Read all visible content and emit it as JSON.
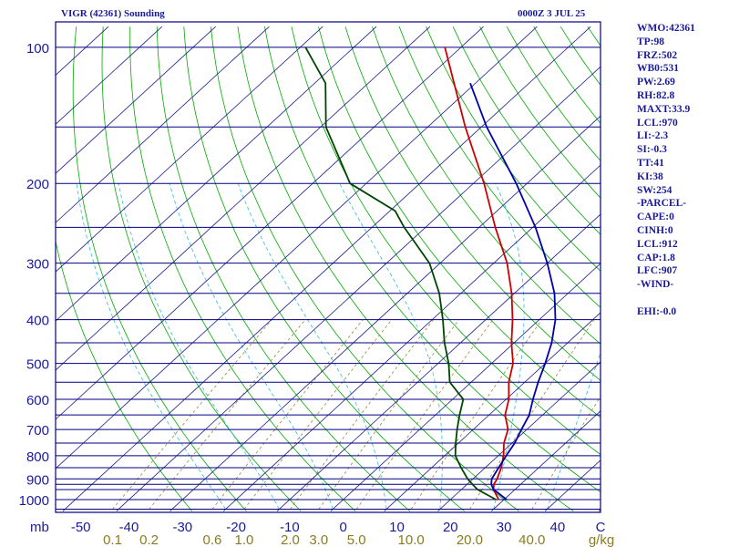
{
  "chart_data": {
    "type": "skew-t",
    "title_left": "VIGR (42361) Sounding",
    "title_right": "0000Z  3 JUL 25",
    "pressure_unit": "mb",
    "mixing_ratio_unit": "g/kg",
    "pressure_axis": {
      "range": [
        1050,
        100
      ],
      "scale": "log",
      "tick_labels": [
        "100",
        "200",
        "300",
        "400",
        "500",
        "600",
        "700",
        "800",
        "900",
        "1000"
      ],
      "isobars": [
        100,
        150,
        200,
        250,
        300,
        350,
        400,
        450,
        500,
        550,
        600,
        650,
        700,
        750,
        800,
        850,
        900,
        925,
        950,
        1000,
        1050
      ]
    },
    "temperature_axis": {
      "tick_labels": [
        "-50",
        "-40",
        "-30",
        "-20",
        "-10",
        "0",
        "10",
        "20",
        "30",
        "40",
        "C"
      ],
      "ticks": [
        -50,
        -40,
        -30,
        -20,
        -10,
        0,
        10,
        20,
        30,
        40
      ]
    },
    "mixing_ratio_labels": [
      "0.1",
      "0.2",
      "0.6",
      "1.0",
      "2.0",
      "3.0",
      "5.0",
      "10.0",
      "20.0",
      "40.0"
    ],
    "mixing_ratio_values": [
      0.1,
      0.2,
      0.6,
      1.0,
      2.0,
      3.0,
      5.0,
      10.0,
      20.0,
      40.0
    ],
    "grid": true,
    "series": [
      {
        "role": "temperature",
        "color": "#cc0000",
        "points": [
          [
            1000,
            29.0
          ],
          [
            950,
            26.0
          ],
          [
            925,
            25.0
          ],
          [
            900,
            24.5
          ],
          [
            850,
            23.0
          ],
          [
            800,
            21.0
          ],
          [
            750,
            18.5
          ],
          [
            700,
            16.5
          ],
          [
            650,
            13.0
          ],
          [
            600,
            10.5
          ],
          [
            550,
            7.0
          ],
          [
            500,
            4.0
          ],
          [
            450,
            -0.5
          ],
          [
            400,
            -5.0
          ],
          [
            350,
            -10.5
          ],
          [
            300,
            -17.5
          ],
          [
            250,
            -27.0
          ],
          [
            200,
            -38.0
          ],
          [
            150,
            -53.0
          ],
          [
            120,
            -64.0
          ],
          [
            100,
            -73.0
          ]
        ]
      },
      {
        "role": "dewpoint",
        "color": "#004400",
        "points": [
          [
            1000,
            28.5
          ],
          [
            950,
            23.0
          ],
          [
            925,
            21.0
          ],
          [
            900,
            19.0
          ],
          [
            850,
            15.5
          ],
          [
            800,
            12.0
          ],
          [
            750,
            9.5
          ],
          [
            700,
            7.0
          ],
          [
            650,
            4.5
          ],
          [
            600,
            2.0
          ],
          [
            550,
            -4.0
          ],
          [
            500,
            -8.0
          ],
          [
            450,
            -13.0
          ],
          [
            400,
            -18.0
          ],
          [
            350,
            -24.0
          ],
          [
            300,
            -32.0
          ],
          [
            250,
            -44.0
          ],
          [
            230,
            -49.0
          ],
          [
            200,
            -63.0
          ],
          [
            150,
            -79.0
          ],
          [
            120,
            -88.0
          ],
          [
            100,
            -99.0
          ]
        ]
      },
      {
        "role": "parcel",
        "color": "#0000aa",
        "points": [
          [
            1000,
            30.5
          ],
          [
            950,
            26.0
          ],
          [
            925,
            24.5
          ],
          [
            900,
            23.5
          ],
          [
            850,
            22.5
          ],
          [
            800,
            21.5
          ],
          [
            750,
            20.5
          ],
          [
            700,
            19.0
          ],
          [
            650,
            17.5
          ],
          [
            600,
            15.0
          ],
          [
            550,
            12.5
          ],
          [
            500,
            10.0
          ],
          [
            450,
            7.0
          ],
          [
            400,
            3.0
          ],
          [
            350,
            -2.5
          ],
          [
            300,
            -10.0
          ],
          [
            250,
            -19.5
          ],
          [
            200,
            -32.0
          ],
          [
            150,
            -49.0
          ],
          [
            120,
            -61.0
          ]
        ]
      }
    ]
  },
  "indices": [
    "WMO:42361",
    "TP:98",
    "FRZ:502",
    "WB0:531",
    "PW:2.69",
    "RH:82.8",
    "MAXT:33.9",
    "LCL:970",
    "LI:-2.3",
    "SI:-0.3",
    "TT:41",
    "KI:38",
    "SW:254",
    "-PARCEL-",
    "CAPE:0",
    "CINH:0",
    "LCL:912",
    "CAP:1.8",
    "LFC:907",
    "-WIND-",
    "",
    "EHI:-0.0"
  ],
  "colors": {
    "isobar": "#000080",
    "isotherm": "#1a1a8c",
    "dry_adiabat": "#00aa00",
    "moist_adiabat": "#33bbdd",
    "mixing_ratio": "#998833",
    "label_primary": "#1a1a99",
    "label_mixing": "#8a7a22",
    "frame": "#000080"
  }
}
